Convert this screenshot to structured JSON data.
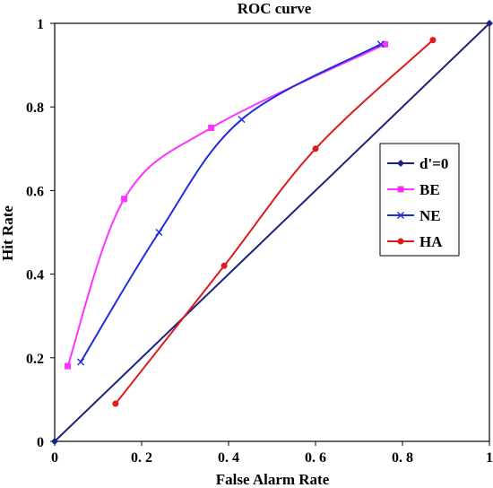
{
  "chart_data": {
    "type": "line",
    "title": "ROC curve",
    "xlabel": "False Alarm Rate",
    "ylabel": "Hit Rate",
    "xlim": [
      0,
      1
    ],
    "ylim": [
      0,
      1
    ],
    "xticks": [
      {
        "value": 0,
        "label": "0"
      },
      {
        "value": 0.2,
        "label": "0. 2"
      },
      {
        "value": 0.4,
        "label": "0. 4"
      },
      {
        "value": 0.6,
        "label": "0. 6"
      },
      {
        "value": 0.8,
        "label": "0. 8"
      },
      {
        "value": 1,
        "label": "1"
      }
    ],
    "yticks": [
      {
        "value": 0,
        "label": "0"
      },
      {
        "value": 0.2,
        "label": "0.2"
      },
      {
        "value": 0.4,
        "label": "0.4"
      },
      {
        "value": 0.6,
        "label": "0.6"
      },
      {
        "value": 0.8,
        "label": "0.8"
      },
      {
        "value": 1,
        "label": "1"
      }
    ],
    "grid": false,
    "legend_position": "right",
    "series": [
      {
        "name": "d'=0",
        "color": "#1a237e",
        "marker": "diamond",
        "smooth": false,
        "x": [
          0,
          1
        ],
        "y": [
          0,
          1
        ]
      },
      {
        "name": "BE",
        "color": "#ff33ff",
        "marker": "square",
        "smooth": true,
        "x": [
          0.03,
          0.16,
          0.36,
          0.76
        ],
        "y": [
          0.18,
          0.58,
          0.75,
          0.95
        ]
      },
      {
        "name": "NE",
        "color": "#1f2be0",
        "marker": "x",
        "smooth": true,
        "x": [
          0.06,
          0.24,
          0.43,
          0.75
        ],
        "y": [
          0.19,
          0.5,
          0.77,
          0.95
        ]
      },
      {
        "name": "HA",
        "color": "#e01a1a",
        "marker": "circle",
        "smooth": true,
        "x": [
          0.14,
          0.39,
          0.6,
          0.87
        ],
        "y": [
          0.09,
          0.42,
          0.7,
          0.96
        ]
      }
    ]
  }
}
